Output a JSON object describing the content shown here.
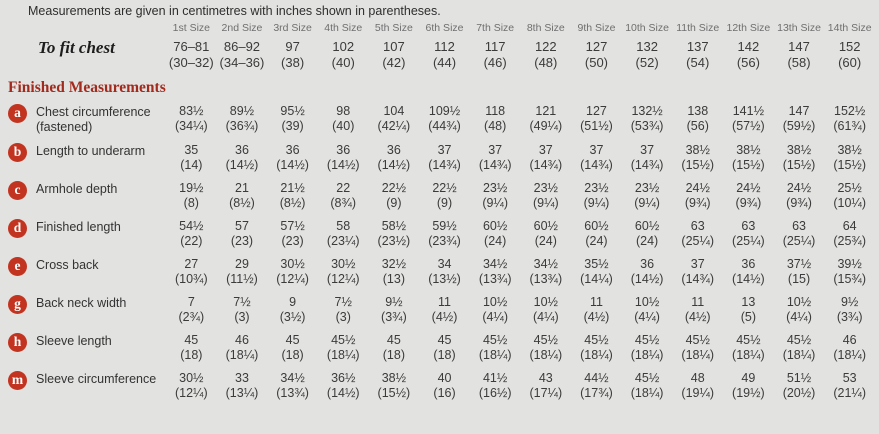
{
  "note": "Measurements are given in centimetres with inches shown in parentheses.",
  "section_heading": "Finished Measurements",
  "colors": {
    "badge": "#c23420",
    "heading": "#a32b1e",
    "background": "#e2e2e0",
    "text": "#3b3b3b"
  },
  "sizes": [
    "1st Size",
    "2nd Size",
    "3rd Size",
    "4th Size",
    "5th Size",
    "6th Size",
    "7th Size",
    "8th Size",
    "9th Size",
    "10th Size",
    "11th Size",
    "12th Size",
    "13th Size",
    "14th Size"
  ],
  "to_fit_chest": {
    "label": "To fit chest",
    "cm": [
      "76–81",
      "86–92",
      "97",
      "102",
      "107",
      "112",
      "117",
      "122",
      "127",
      "132",
      "137",
      "142",
      "147",
      "152"
    ],
    "in": [
      "(30–32)",
      "(34–36)",
      "(38)",
      "(40)",
      "(42)",
      "(44)",
      "(46)",
      "(48)",
      "(50)",
      "(52)",
      "(54)",
      "(56)",
      "(58)",
      "(60)"
    ]
  },
  "rows": [
    {
      "key": "a",
      "label": "Chest circumference",
      "label2": "(fastened)",
      "cm": [
        "83½",
        "89½",
        "95½",
        "98",
        "104",
        "109½",
        "118",
        "121",
        "127",
        "132½",
        "138",
        "141½",
        "147",
        "152½"
      ],
      "in": [
        "(34¼)",
        "(36¾)",
        "(39)",
        "(40)",
        "(42¼)",
        "(44¾)",
        "(48)",
        "(49¼)",
        "(51½)",
        "(53¾)",
        "(56)",
        "(57½)",
        "(59½)",
        "(61¾)"
      ]
    },
    {
      "key": "b",
      "label": "Length to underarm",
      "label2": "",
      "cm": [
        "35",
        "36",
        "36",
        "36",
        "36",
        "37",
        "37",
        "37",
        "37",
        "37",
        "38½",
        "38½",
        "38½",
        "38½"
      ],
      "in": [
        "(14)",
        "(14½)",
        "(14½)",
        "(14½)",
        "(14½)",
        "(14¾)",
        "(14¾)",
        "(14¾)",
        "(14¾)",
        "(14¾)",
        "(15½)",
        "(15½)",
        "(15½)",
        "(15½)"
      ]
    },
    {
      "key": "c",
      "label": "Armhole depth",
      "label2": "",
      "cm": [
        "19½",
        "21",
        "21½",
        "22",
        "22½",
        "22½",
        "23½",
        "23½",
        "23½",
        "23½",
        "24½",
        "24½",
        "24½",
        "25½"
      ],
      "in": [
        "(8)",
        "(8½)",
        "(8½)",
        "(8¾)",
        "(9)",
        "(9)",
        "(9¼)",
        "(9¼)",
        "(9¼)",
        "(9¼)",
        "(9¾)",
        "(9¾)",
        "(9¾)",
        "(10¼)"
      ]
    },
    {
      "key": "d",
      "label": "Finished length",
      "label2": "",
      "cm": [
        "54½",
        "57",
        "57½",
        "58",
        "58½",
        "59½",
        "60½",
        "60½",
        "60½",
        "60½",
        "63",
        "63",
        "63",
        "64"
      ],
      "in": [
        "(22)",
        "(23)",
        "(23)",
        "(23¼)",
        "(23½)",
        "(23¾)",
        "(24)",
        "(24)",
        "(24)",
        "(24)",
        "(25¼)",
        "(25¼)",
        "(25¼)",
        "(25¾)"
      ]
    },
    {
      "key": "e",
      "label": "Cross back",
      "label2": "",
      "cm": [
        "27",
        "29",
        "30½",
        "30½",
        "32½",
        "34",
        "34½",
        "34½",
        "35½",
        "36",
        "37",
        "36",
        "37½",
        "39½"
      ],
      "in": [
        "(10¾)",
        "(11½)",
        "(12¼)",
        "(12¼)",
        "(13)",
        "(13½)",
        "(13¾)",
        "(13¾)",
        "(14¼)",
        "(14½)",
        "(14¾)",
        "(14½)",
        "(15)",
        "(15¾)"
      ]
    },
    {
      "key": "g",
      "label": "Back neck width",
      "label2": "",
      "cm": [
        "7",
        "7½",
        "9",
        "7½",
        "9½",
        "11",
        "10½",
        "10½",
        "11",
        "10½",
        "11",
        "13",
        "10½",
        "9½"
      ],
      "in": [
        "(2¾)",
        "(3)",
        "(3½)",
        "(3)",
        "(3¾)",
        "(4½)",
        "(4¼)",
        "(4¼)",
        "(4½)",
        "(4¼)",
        "(4½)",
        "(5)",
        "(4¼)",
        "(3¾)"
      ]
    },
    {
      "key": "h",
      "label": "Sleeve length",
      "label2": "",
      "cm": [
        "45",
        "46",
        "45",
        "45½",
        "45",
        "45",
        "45½",
        "45½",
        "45½",
        "45½",
        "45½",
        "45½",
        "45½",
        "46"
      ],
      "in": [
        "(18)",
        "(18¼)",
        "(18)",
        "(18¼)",
        "(18)",
        "(18)",
        "(18¼)",
        "(18¼)",
        "(18¼)",
        "(18¼)",
        "(18¼)",
        "(18¼)",
        "(18¼)",
        "(18¼)"
      ]
    },
    {
      "key": "m",
      "label": "Sleeve circumference",
      "label2": "",
      "cm": [
        "30½",
        "33",
        "34½",
        "36½",
        "38½",
        "40",
        "41½",
        "43",
        "44½",
        "45½",
        "48",
        "49",
        "51½",
        "53"
      ],
      "in": [
        "(12¼)",
        "(13¼)",
        "(13¾)",
        "(14½)",
        "(15½)",
        "(16)",
        "(16½)",
        "(17¼)",
        "(17¾)",
        "(18¼)",
        "(19¼)",
        "(19½)",
        "(20½)",
        "(21¼)"
      ]
    }
  ]
}
